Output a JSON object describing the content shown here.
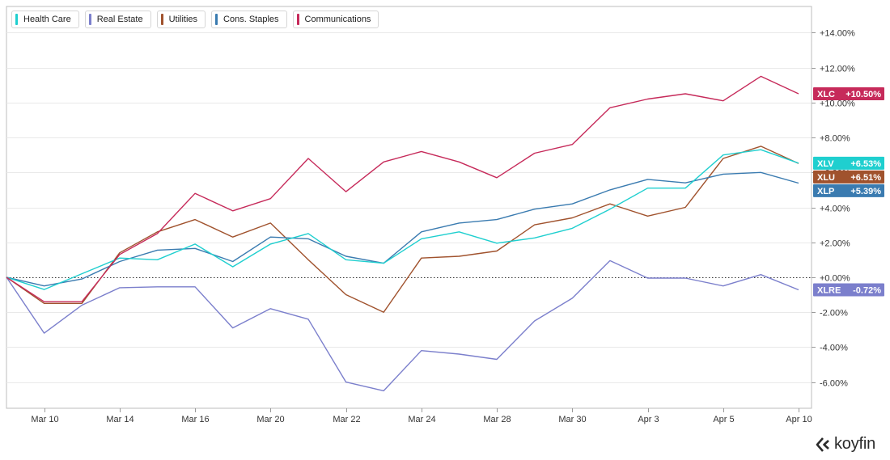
{
  "colors": {
    "Health Care": "#1fcfcf",
    "Real Estate": "#7b7fcc",
    "Utilities": "#a0522d",
    "Cons. Staples": "#3a7bb0",
    "Communications": "#c62a5a",
    "grid": "#e9e9e9",
    "axis_text": "#333333"
  },
  "legend": [
    "Health Care",
    "Real Estate",
    "Utilities",
    "Cons. Staples",
    "Communications"
  ],
  "brand": {
    "name": "koyfin",
    "icon": "koyfin-logo-icon"
  },
  "chart_data": {
    "type": "line",
    "x_tick_labels": [
      "Mar 10",
      "Mar 14",
      "Mar 16",
      "Mar 20",
      "Mar 22",
      "Mar 24",
      "Mar 28",
      "Mar 30",
      "Apr 3",
      "Apr 5",
      "Apr 10"
    ],
    "x_tick_index": [
      1,
      3,
      5,
      7,
      9,
      11,
      13,
      15,
      17,
      19,
      21
    ],
    "ylim": [
      -7.5,
      15.5
    ],
    "y_ticks": [
      {
        "v": 14,
        "label": "+14.00%"
      },
      {
        "v": 12,
        "label": "+12.00%"
      },
      {
        "v": 10,
        "label": "+10.00%"
      },
      {
        "v": 8,
        "label": "+8.00%"
      },
      {
        "v": 6,
        "label": "+6.00%"
      },
      {
        "v": 4,
        "label": "+4.00%"
      },
      {
        "v": 2,
        "label": "+2.00%"
      },
      {
        "v": 0,
        "label": "+0.00%"
      },
      {
        "v": -2,
        "label": "-2.00%"
      },
      {
        "v": -4,
        "label": "-4.00%"
      },
      {
        "v": -6,
        "label": "-6.00%"
      }
    ],
    "zero_line": true,
    "series": [
      {
        "name": "Real Estate",
        "ticker": "XLRE",
        "label": "-0.72%",
        "values": [
          0,
          -3.2,
          -1.6,
          -0.6,
          -0.55,
          -0.55,
          -2.9,
          -1.8,
          -2.4,
          -6.0,
          -6.5,
          -4.2,
          -4.4,
          -4.7,
          -2.5,
          -1.2,
          0.95,
          -0.05,
          -0.05,
          -0.5,
          0.15,
          -0.72
        ]
      },
      {
        "name": "Utilities",
        "ticker": "XLU",
        "label": "+6.51%",
        "values": [
          0,
          -1.5,
          -1.5,
          1.4,
          2.6,
          3.3,
          2.3,
          3.1,
          1.0,
          -1.0,
          -2.0,
          1.1,
          1.2,
          1.5,
          3.0,
          3.4,
          4.2,
          3.5,
          4.0,
          6.8,
          7.5,
          6.51
        ]
      },
      {
        "name": "Cons. Staples",
        "ticker": "XLP",
        "label": "+5.39%",
        "values": [
          0,
          -0.5,
          -0.1,
          0.9,
          1.55,
          1.65,
          0.9,
          2.3,
          2.2,
          1.2,
          0.8,
          2.6,
          3.1,
          3.3,
          3.9,
          4.2,
          5.0,
          5.6,
          5.4,
          5.9,
          6.0,
          5.39
        ]
      },
      {
        "name": "Health Care",
        "ticker": "XLV",
        "label": "+6.53%",
        "values": [
          0,
          -0.7,
          0.2,
          1.1,
          1.0,
          1.9,
          0.6,
          1.9,
          2.5,
          1.0,
          0.8,
          2.2,
          2.6,
          1.95,
          2.25,
          2.8,
          3.9,
          5.1,
          5.1,
          7.0,
          7.3,
          6.53
        ]
      },
      {
        "name": "Communications",
        "ticker": "XLC",
        "label": "+10.50%",
        "values": [
          0,
          -1.4,
          -1.4,
          1.3,
          2.5,
          4.8,
          3.8,
          4.5,
          6.8,
          4.9,
          6.6,
          7.2,
          6.6,
          5.7,
          7.1,
          7.6,
          9.7,
          10.2,
          10.5,
          10.1,
          11.5,
          10.5
        ]
      }
    ],
    "end_label_order": [
      "Communications",
      "Health Care",
      "Utilities",
      "Cons. Staples",
      "Real Estate"
    ]
  }
}
